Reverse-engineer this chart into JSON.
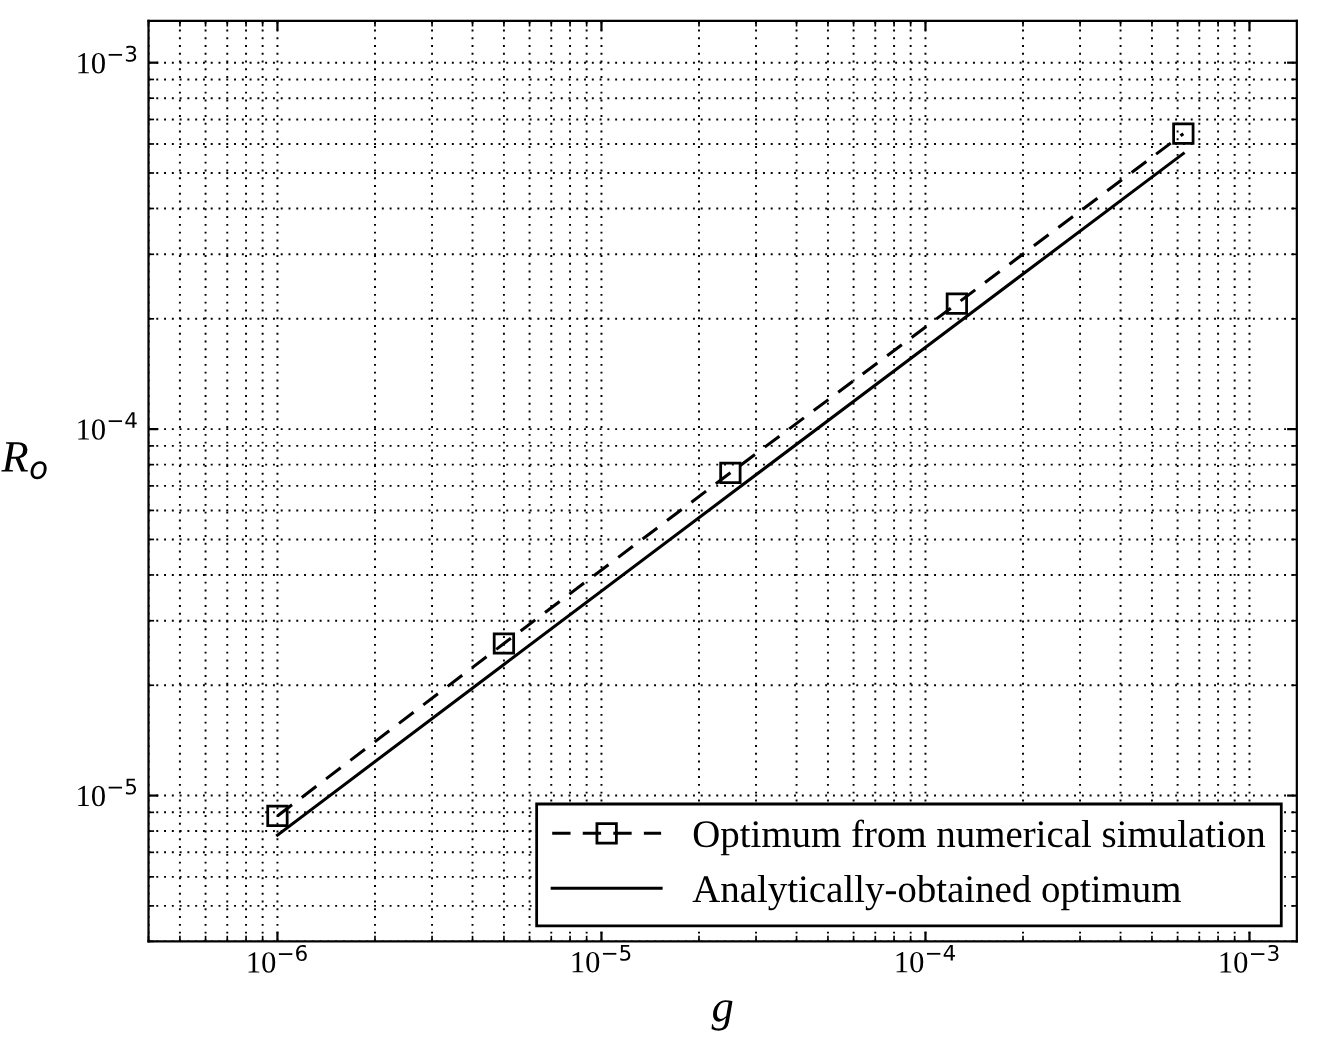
{
  "chart_data": {
    "type": "line",
    "xlabel": "g",
    "ylabel": "R$_{o}$",
    "log": "xy",
    "grid": true,
    "legend": "bottom right",
    "xlim": [
      4e-07,
      0.0014
    ],
    "ylim": [
      4e-06,
      0.0013
    ],
    "xticks": [
      {
        "value": 1e-06,
        "label": "10$^{−6}$"
      },
      {
        "value": 1e-05,
        "label": "10$^{−5}$"
      },
      {
        "value": 0.0001,
        "label": "10$^{−4}$"
      },
      {
        "value": 0.001,
        "label": "10$^{−3}$"
      }
    ],
    "yticks": [
      {
        "value": 1e-05,
        "label": "10$^{−5}$"
      },
      {
        "value": 0.0001,
        "label": "10$^{−4}$"
      },
      {
        "value": 0.001,
        "label": "10$^{−3}$"
      }
    ],
    "series": [
      {
        "name": "Optimum from numerical simulation",
        "color": "#000000",
        "line_style": "dashed",
        "marker": "square",
        "x": [
          1e-06,
          5e-06,
          2.5e-05,
          0.000125,
          0.000625
        ],
        "values": [
          8.8e-06,
          2.6e-05,
          7.6e-05,
          0.00022,
          0.00064
        ]
      },
      {
        "name": "Analytically-obtained optimum",
        "color": "#000000",
        "line_style": "solid",
        "marker": "none",
        "x": [
          1e-06,
          5e-06,
          2.5e-05,
          0.000125,
          0.000625
        ],
        "values": [
          7.8e-06,
          2.28e-05,
          6.65e-05,
          0.000194,
          0.000565
        ]
      }
    ]
  }
}
